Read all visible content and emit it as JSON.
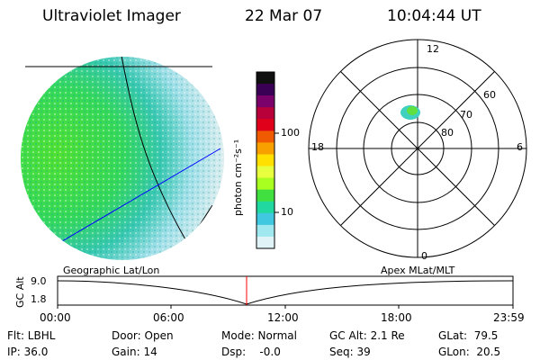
{
  "header": {
    "instrument": "Ultraviolet Imager",
    "date": "22 Mar 07",
    "time": "10:04:44 UT"
  },
  "colorbar": {
    "unit_label": "photon cm⁻²s⁻¹",
    "ticks": [
      "100",
      "10"
    ],
    "colors": [
      "#101010",
      "#3a0055",
      "#7a006a",
      "#b8003a",
      "#e0001a",
      "#f05a00",
      "#f8a000",
      "#ffe000",
      "#e8ff40",
      "#a8ff20",
      "#40e040",
      "#20d8a0",
      "#40c8e0",
      "#a0e8f0",
      "#e0f4f8"
    ]
  },
  "polar": {
    "mlt_labels": {
      "top": "12",
      "bottom": "0",
      "left": "18",
      "right": "6"
    },
    "lat_labels": [
      "60",
      "70",
      "80"
    ]
  },
  "timeline": {
    "left_label": "Geographic Lat/Lon",
    "right_label": "Apex MLat/MLT",
    "axis_label": "GC Alt",
    "y_ticks": [
      "9.0",
      "1.8"
    ],
    "x_ticks": [
      "00:00",
      "06:00",
      "12:00",
      "18:00",
      "23:59"
    ],
    "marker_color": "#ff0000"
  },
  "info": {
    "flt": "Flt: LBHL",
    "ip": "IP: 36.0",
    "door": "Door: Open",
    "gain": "Gain: 14",
    "mode": "Mode: Normal",
    "dsp": "Dsp:    -0.0",
    "gcalt": "GC Alt: 2.1 Re",
    "seq": "Seq: 39",
    "glat": "GLat:  79.5",
    "glon": "GLon:  20.5"
  }
}
